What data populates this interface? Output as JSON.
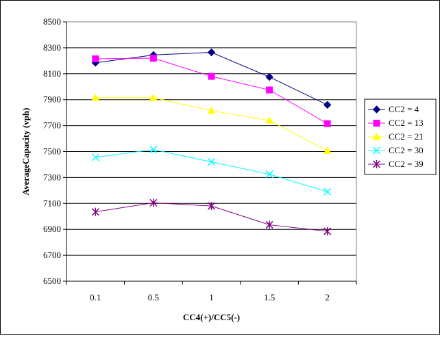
{
  "chart_data": {
    "type": "line",
    "title": "",
    "xlabel": "CC4(+)/CC5(-)",
    "ylabel": "AverageCapacity (vph)",
    "categories": [
      "0.1",
      "0.5",
      "1",
      "1.5",
      "2"
    ],
    "ylim": [
      6500,
      8500
    ],
    "yticks": [
      "6500",
      "6700",
      "6900",
      "7100",
      "7300",
      "7500",
      "7700",
      "7900",
      "8100",
      "8300",
      "8500"
    ],
    "grid": "horizontal",
    "legend_position": "right",
    "series": [
      {
        "name": "CC2 = 4",
        "values": [
          8185,
          8245,
          8265,
          8075,
          7860
        ],
        "color": "#000080",
        "marker": "diamond"
      },
      {
        "name": "CC2 = 13",
        "values": [
          8215,
          8220,
          8080,
          7975,
          7715
        ],
        "color": "#FF00FF",
        "marker": "square"
      },
      {
        "name": "CC2 = 21",
        "values": [
          7915,
          7915,
          7815,
          7740,
          7505
        ],
        "color": "#FFFF00",
        "marker": "triangle"
      },
      {
        "name": "CC2 = 30",
        "values": [
          7455,
          7515,
          7420,
          7325,
          7190
        ],
        "color": "#00FFFF",
        "marker": "x"
      },
      {
        "name": "CC2 = 39",
        "values": [
          7035,
          7105,
          7080,
          6935,
          6885
        ],
        "color": "#800080",
        "marker": "star"
      }
    ]
  }
}
